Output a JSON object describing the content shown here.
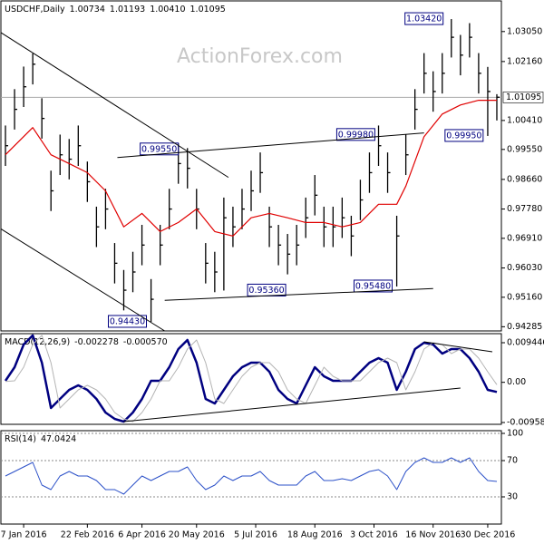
{
  "watermark": "ActionForex.com",
  "chart_data": [
    {
      "type": "ohlc",
      "title": "USDCHF,Daily",
      "header_values": [
        {
          "value": 1.00734,
          "label": "1.00734"
        },
        {
          "value": 1.01193,
          "label": "1.01193"
        },
        {
          "value": 1.0041,
          "label": "1.00410"
        },
        {
          "value": 1.01095,
          "label": "1.01095"
        }
      ],
      "color": "#000000",
      "xlim": [
        -0.5,
        54.5
      ],
      "ylim": [
        0.9416,
        1.0396
      ],
      "yticks": [
        {
          "value": 1.0305,
          "label": "1.03050"
        },
        {
          "value": 1.0216,
          "label": "1.02160"
        },
        {
          "value": 1.0041,
          "label": "1.00410"
        },
        {
          "value": 0.9955,
          "label": "0.99550"
        },
        {
          "value": 0.9866,
          "label": "0.98660"
        },
        {
          "value": 0.9778,
          "label": "0.97780"
        },
        {
          "value": 0.9691,
          "label": "0.96910"
        },
        {
          "value": 0.9603,
          "label": "0.96030"
        },
        {
          "value": 0.9516,
          "label": "0.95160"
        },
        {
          "value": 0.94285,
          "label": "0.94285"
        }
      ],
      "current": {
        "value": 1.01095,
        "label": "1.01095"
      },
      "high": [
        1.0026,
        1.0134,
        1.0201,
        1.024,
        1.0107,
        0.9892,
        0.9999,
        0.9986,
        1.0026,
        0.9919,
        0.9785,
        0.9838,
        0.9677,
        0.9597,
        0.9651,
        0.9731,
        0.957,
        0.9731,
        0.9838,
        0.9973,
        0.9959,
        0.9838,
        0.9677,
        0.9651,
        0.9812,
        0.9785,
        0.9838,
        0.9892,
        0.9946,
        0.9785,
        0.9731,
        0.9704,
        0.9731,
        0.9812,
        0.9879,
        0.9785,
        0.9785,
        0.9812,
        0.9758,
        0.9865,
        0.9946,
        1.0026,
        0.9946,
        0.9758,
        0.9999,
        1.0134,
        1.0241,
        1.0187,
        1.0241,
        1.0342,
        1.0295,
        1.033,
        1.0241,
        1.02,
        1.0119
      ],
      "low": [
        0.9906,
        1.0014,
        1.0081,
        1.0148,
        0.9987,
        0.9772,
        0.9879,
        0.9866,
        0.9906,
        0.9799,
        0.9665,
        0.9718,
        0.9557,
        0.9477,
        0.9531,
        0.9611,
        0.9443,
        0.9611,
        0.9718,
        0.9853,
        0.9839,
        0.9718,
        0.9557,
        0.9531,
        0.9536,
        0.9665,
        0.9718,
        0.9772,
        0.9826,
        0.9665,
        0.9611,
        0.9584,
        0.9611,
        0.9692,
        0.9759,
        0.9665,
        0.9665,
        0.9692,
        0.9638,
        0.9745,
        0.9826,
        0.9906,
        0.9826,
        0.9548,
        0.9879,
        1.0014,
        1.0121,
        1.0067,
        1.0121,
        1.0228,
        1.0175,
        1.0228,
        1.0121,
        0.9995,
        1.0041
      ],
      "close": [
        0.9966,
        1.0074,
        1.0141,
        1.0208,
        1.0047,
        0.9832,
        0.9939,
        0.9926,
        0.9966,
        0.9859,
        0.9725,
        0.9778,
        0.9617,
        0.9537,
        0.9591,
        0.9671,
        0.951,
        0.9671,
        0.9778,
        0.9913,
        0.9899,
        0.9778,
        0.9617,
        0.9591,
        0.9752,
        0.9725,
        0.9778,
        0.9832,
        0.9886,
        0.9725,
        0.9671,
        0.9644,
        0.9671,
        0.9752,
        0.9819,
        0.9725,
        0.9725,
        0.9752,
        0.9698,
        0.9805,
        0.9886,
        0.9966,
        0.9886,
        0.9698,
        0.9939,
        1.0074,
        1.0181,
        1.0127,
        1.0181,
        1.0288,
        1.0235,
        1.0288,
        1.0181,
        1.0127,
        1.011
      ],
      "ma": {
        "color": "#e00000",
        "x": [
          0,
          3,
          5,
          7,
          9,
          11,
          13,
          15,
          17,
          19,
          21,
          23,
          25,
          27,
          29,
          31,
          33,
          35,
          37,
          39,
          41,
          43,
          44,
          46,
          48,
          50,
          52,
          54
        ],
        "values": [
          0.9939,
          1.002,
          0.9939,
          0.9913,
          0.9886,
          0.9832,
          0.9725,
          0.9765,
          0.9711,
          0.9738,
          0.9778,
          0.9711,
          0.9698,
          0.9752,
          0.9765,
          0.9752,
          0.9738,
          0.9738,
          0.9725,
          0.9738,
          0.9792,
          0.9792,
          0.9846,
          0.9993,
          1.006,
          1.0087,
          1.0101,
          1.0101
        ]
      },
      "trendlines": [
        {
          "x": [
            -0.5,
            24.5
          ],
          "y": [
            1.0302,
            0.9872
          ]
        },
        {
          "x": [
            -0.5,
            17.5
          ],
          "y": [
            0.9719,
            0.9416
          ]
        },
        {
          "x": [
            12.3,
            46
          ],
          "y": [
            0.9931,
            1.0004
          ]
        },
        {
          "x": [
            17.5,
            47
          ],
          "y": [
            0.9507,
            0.9542
          ]
        }
      ],
      "annotations": [
        {
          "text": "1.03420",
          "x": 46,
          "y": 1.0342
        },
        {
          "text": "0.99550",
          "x": 16.9,
          "y": 0.9955
        },
        {
          "text": "0.99980",
          "x": 38.5,
          "y": 0.9998
        },
        {
          "text": "0.99950",
          "x": 50.4,
          "y": 0.9995
        },
        {
          "text": "0.95360",
          "x": 28.7,
          "y": 0.9536
        },
        {
          "text": "0.95480",
          "x": 40.4,
          "y": 0.9548
        },
        {
          "text": "0.94430",
          "x": 13.4,
          "y": 0.9443
        }
      ]
    },
    {
      "type": "line",
      "title": "MACD(12,26,9)",
      "header_values": [
        -0.002278,
        {
          "value": -0.00057,
          "label": "-0.000570"
        }
      ],
      "xlim": [
        -0.5,
        54.5
      ],
      "ylim": [
        -0.01002,
        0.01161
      ],
      "yticks": [
        0.009446,
        {
          "value": 0,
          "label": "0.00"
        },
        -0.009588
      ],
      "series": [
        {
          "color": "#000080",
          "width": 2.5,
          "values": [
            0.00036,
            0.00361,
            0.00902,
            0.0112,
            0.00469,
            -0.00613,
            -0.00396,
            -0.0018,
            -0.00072,
            -0.0018,
            -0.00396,
            -0.00721,
            -0.00872,
            -0.00937,
            -0.00721,
            -0.00396,
            0.00036,
            0.00036,
            0.00361,
            0.00793,
            0.0101,
            0.00469,
            -0.00396,
            -0.00504,
            -0.0018,
            0.00145,
            0.00361,
            0.00469,
            0.00469,
            0.00253,
            -0.0018,
            -0.00396,
            -0.00504,
            -0.00072,
            0.00361,
            0.00145,
            0.00036,
            0.00036,
            0.00036,
            0.00253,
            0.00469,
            0.00577,
            0.00469,
            -0.0018,
            0.00253,
            0.00793,
            0.00945,
            0.00902,
            0.00685,
            0.00793,
            0.00793,
            0.00577,
            0.00253,
            -0.0018,
            -0.0023
          ]
        },
        {
          "color": "#b4b4b4",
          "width": 1,
          "values": [
            0.0002,
            0.00036,
            0.00361,
            0.00902,
            0.0112,
            0.00469,
            -0.00613,
            -0.00396,
            -0.0018,
            -0.00072,
            -0.0018,
            -0.00396,
            -0.00721,
            -0.00872,
            -0.00937,
            -0.00721,
            -0.00396,
            0.00036,
            0.00036,
            0.00361,
            0.00793,
            0.0101,
            0.00469,
            -0.00396,
            -0.00504,
            -0.0018,
            0.00145,
            0.00361,
            0.00469,
            0.00469,
            0.00253,
            -0.0018,
            -0.00396,
            -0.00504,
            -0.00072,
            0.00361,
            0.00145,
            0.00036,
            0.00036,
            0.00036,
            0.00253,
            0.00469,
            0.00577,
            0.00469,
            -0.0018,
            0.00253,
            0.00793,
            0.00945,
            0.00902,
            0.00685,
            0.00793,
            0.00793,
            0.00577,
            0.00253,
            -0.00057
          ]
        }
      ],
      "trendlines": [
        {
          "x": [
            13,
            50
          ],
          "y": [
            -0.00937,
            -0.00137
          ]
        },
        {
          "x": [
            46,
            53.5
          ],
          "y": [
            0.00966,
            0.00728
          ]
        }
      ]
    },
    {
      "type": "line",
      "title": "RSI(14)",
      "header_values": [
        47.0424
      ],
      "xlim": [
        -0.5,
        54.5
      ],
      "ylim": [
        0,
        103
      ],
      "yticks": [
        30,
        70,
        100
      ],
      "grid": true,
      "series": [
        {
          "color": "#2b50c8",
          "width": 1,
          "values": [
            53,
            58,
            63,
            68,
            43,
            38,
            53,
            58,
            53,
            53,
            48,
            38,
            38,
            33,
            43,
            53,
            48,
            53,
            58,
            58,
            63,
            48,
            38,
            43,
            53,
            48,
            53,
            53,
            58,
            48,
            43,
            43,
            43,
            53,
            58,
            48,
            48,
            50,
            48,
            53,
            58,
            60,
            53,
            38,
            58,
            68,
            73,
            68,
            68,
            73,
            68,
            73,
            58,
            48,
            47
          ]
        }
      ],
      "xticks": [
        {
          "value": 2,
          "label": "7 Jan 2016"
        },
        {
          "value": 9,
          "label": "22 Feb 2016"
        },
        {
          "value": 15,
          "label": "6 Apr 2016"
        },
        {
          "value": 21,
          "label": "20 May 2016"
        },
        {
          "value": 27.5,
          "label": "5 Jul 2016"
        },
        {
          "value": 34,
          "label": "18 Aug 2016"
        },
        {
          "value": 40.5,
          "label": "3 Oct 2016"
        },
        {
          "value": 47,
          "label": "16 Nov 2016"
        },
        {
          "value": 53,
          "label": "30 Dec 2016"
        }
      ]
    }
  ]
}
